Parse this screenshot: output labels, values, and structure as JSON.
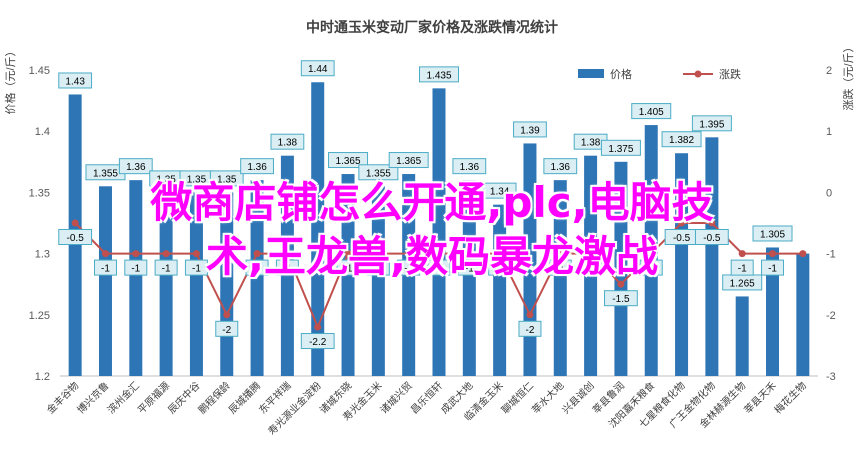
{
  "overlay": {
    "line1": "微商店铺怎么开通,plc,电脑技",
    "line2": "术,王龙兽,数码暴龙激战"
  },
  "chart_data": {
    "type": "bar",
    "title": "中时通玉米变动厂家价格及涨跌情况统计",
    "ylabel_left": "价格（元/斤）",
    "ylabel_right": "涨跌（元/斤）",
    "legend_position": "top",
    "ylim_left": [
      1.2,
      1.45
    ],
    "yticks_left": [
      "1.2",
      "1.25",
      "1.3",
      "1.35",
      "1.4",
      "1.45"
    ],
    "ylim_right": [
      -3,
      2
    ],
    "yticks_right": [
      "-3",
      "-2",
      "-1",
      "0",
      "1",
      "2"
    ],
    "grid": false,
    "colors": {
      "bar": "#2e75b6",
      "line": "#c0504d",
      "label_bg": "#daeef3",
      "label_border": "#4bacc6"
    },
    "categories": [
      "金丰谷物",
      "博兴京鲁",
      "滨州金汇",
      "平原福源",
      "辰庆中谷",
      "鹏程保龄",
      "辰城播腾",
      "东平祥瑞",
      "寿光源业金淀粉",
      "诸城东晓",
      "寿光金玉米",
      "诸城兴贸",
      "昌乐恒轩",
      "成武大地",
      "临清金玉米",
      "聊城恒仁",
      "莘水大地",
      "兴县诚创",
      "莘县鲁润",
      "沈阳嘉禾粮食",
      "七星粮食化物",
      "广王金物化物",
      "金林赫源生物",
      "莘县天禾",
      "梅花生物"
    ],
    "series": [
      {
        "name": "价格",
        "type": "bar",
        "axis": "left",
        "values": [
          1.43,
          1.355,
          1.36,
          1.35,
          1.35,
          1.35,
          1.36,
          1.38,
          1.44,
          1.365,
          1.355,
          1.365,
          1.435,
          1.36,
          1.34,
          1.39,
          1.36,
          1.38,
          1.375,
          1.405,
          1.382,
          1.395,
          1.265,
          1.305,
          1.3
        ],
        "labels": [
          "1.43",
          "1.355",
          "1.36",
          "1.35",
          "1.35",
          "1.35",
          "1.36",
          "1.38",
          "1.44",
          "1.365",
          "1.355",
          "1.365",
          "1.435",
          "1.36",
          "1.34",
          "1.39",
          "1.36",
          "1.38",
          "1.375",
          "1.405",
          "1.382",
          "1.395",
          "1.265",
          "1.305",
          ""
        ]
      },
      {
        "name": "涨跌",
        "type": "line",
        "axis": "right",
        "values": [
          -0.5,
          -1,
          -1,
          -1,
          -1,
          -2,
          -1,
          -1,
          -2.2,
          -1,
          -1,
          -1,
          -1,
          -1,
          -1,
          -2,
          -1,
          -1,
          -1.5,
          -1,
          -0.5,
          -0.5,
          -1,
          -1,
          -1
        ],
        "labels": [
          "-0.5",
          "-1",
          "-1",
          "-1",
          "-1",
          "-2",
          "-1",
          "-1",
          "-2.2",
          "-1",
          "-1",
          "-1",
          "-1",
          "-1",
          "-1",
          "-2",
          "-1",
          "-1",
          "-1.5",
          "-1",
          "-0.5",
          "-0.5",
          "-1",
          "-1",
          ""
        ]
      }
    ]
  }
}
